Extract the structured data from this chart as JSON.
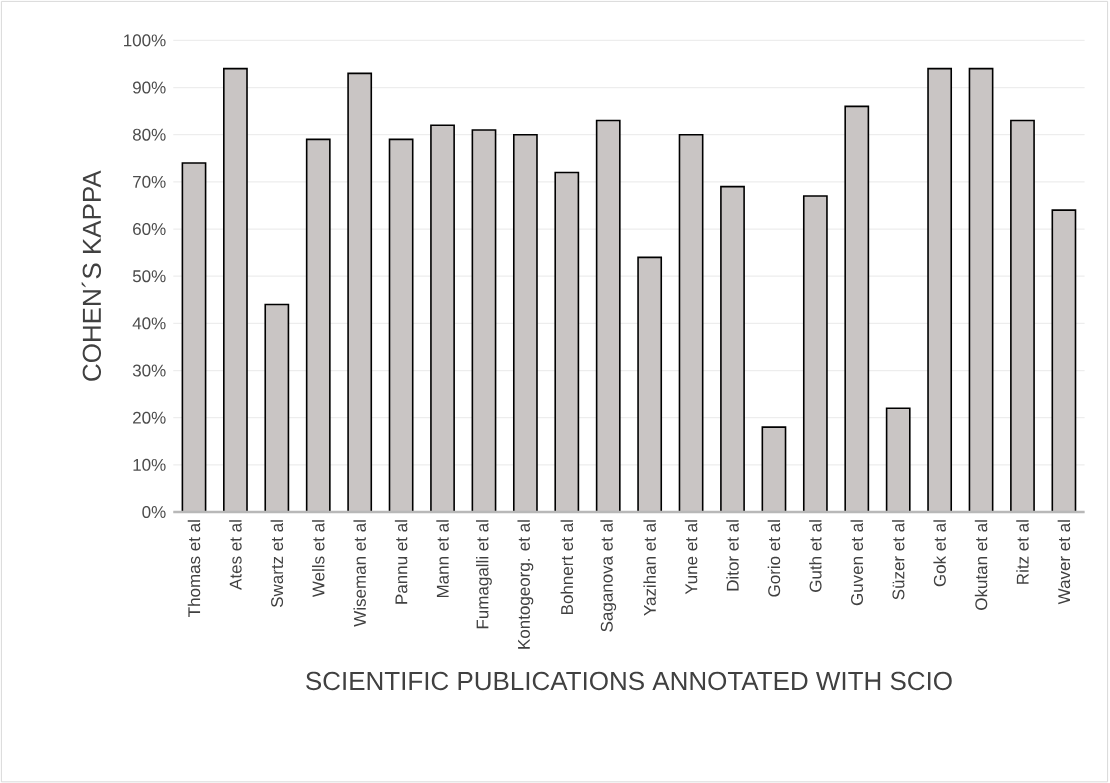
{
  "chart_data": {
    "type": "bar",
    "xlabel": "SCIENTIFIC PUBLICATIONS ANNOTATED WITH SCIO",
    "ylabel": "COHEN´S KAPPA",
    "categories": [
      "Thomas et al",
      "Ates et al",
      "Swartz et al",
      "Wells et al",
      "Wiseman et al",
      "Pannu et al",
      "Mann et al",
      "Fumagalli et al",
      "Kontogeorg. et al",
      "Bohnert et al",
      "Saganova et al",
      "Yazihan et al",
      "Yune et al",
      "Ditor et al",
      "Gorio et al",
      "Guth et al",
      "Guven et al",
      "Süzer et al",
      "Gok et al",
      "Okutan et al",
      "Ritz et al",
      "Waver et al"
    ],
    "values": [
      74,
      94,
      44,
      79,
      93,
      79,
      82,
      81,
      80,
      72,
      83,
      54,
      80,
      69,
      18,
      67,
      86,
      22,
      94,
      94,
      83,
      64
    ],
    "color": "#c9c5c4",
    "ylim": [
      0,
      100
    ],
    "yticks": [
      {
        "value": 0,
        "label": "0%"
      },
      {
        "value": 10,
        "label": "10%"
      },
      {
        "value": 20,
        "label": "20%"
      },
      {
        "value": 30,
        "label": "30%"
      },
      {
        "value": 40,
        "label": "40%"
      },
      {
        "value": 50,
        "label": "50%"
      },
      {
        "value": 60,
        "label": "60%"
      },
      {
        "value": 70,
        "label": "70%"
      },
      {
        "value": 80,
        "label": "80%"
      },
      {
        "value": 90,
        "label": "90%"
      },
      {
        "value": 100,
        "label": "100%"
      }
    ],
    "grid": "y"
  }
}
